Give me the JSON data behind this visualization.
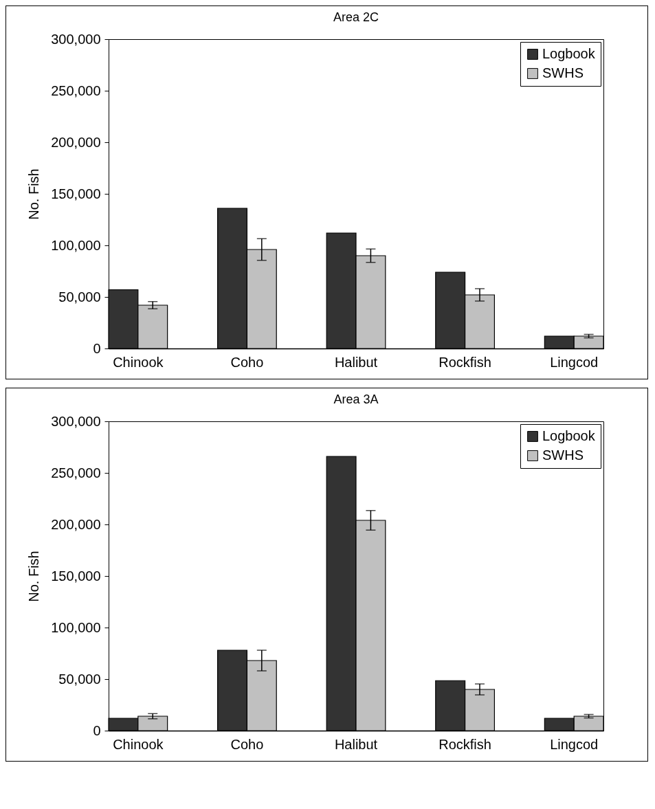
{
  "chart_data": [
    {
      "type": "bar",
      "title": "Area 2C",
      "ylabel": "No. Fish",
      "categories": [
        "Chinook",
        "Coho",
        "Halibut",
        "Rockfish",
        "Lingcod"
      ],
      "series": [
        {
          "name": "Logbook",
          "color": "#333333",
          "values": [
            57000,
            136000,
            112000,
            74000,
            12000
          ]
        },
        {
          "name": "SWHS",
          "color": "#c0c0c0",
          "values": [
            42000,
            96000,
            90000,
            52000,
            12000
          ],
          "errors": [
            3500,
            10500,
            6500,
            6000,
            1700
          ]
        }
      ],
      "ylim": [
        0,
        300000
      ],
      "yticks": [
        0,
        {
          "value": 50000,
          "label": "50,000"
        },
        {
          "value": 100000,
          "label": "100,000"
        },
        {
          "value": 150000,
          "label": "150,000"
        },
        {
          "value": 200000,
          "label": "200,000"
        },
        {
          "value": 250000,
          "label": "250,000"
        },
        {
          "value": 300000,
          "label": "300,000"
        }
      ],
      "legend": "top right",
      "grid": false
    },
    {
      "type": "bar",
      "title": "Area 3A",
      "ylabel": "No. Fish",
      "categories": [
        "Chinook",
        "Coho",
        "Halibut",
        "Rockfish",
        "Lingcod"
      ],
      "series": [
        {
          "name": "Logbook",
          "color": "#333333",
          "values": [
            12000,
            78000,
            266000,
            48500,
            12000
          ]
        },
        {
          "name": "SWHS",
          "color": "#c0c0c0",
          "values": [
            14000,
            68000,
            204000,
            40000,
            14000
          ],
          "errors": [
            2500,
            10000,
            9500,
            5300,
            1700
          ]
        }
      ],
      "ylim": [
        0,
        300000
      ],
      "yticks": [
        0,
        {
          "value": 50000,
          "label": "50,000"
        },
        {
          "value": 100000,
          "label": "100,000"
        },
        {
          "value": 150000,
          "label": "150,000"
        },
        {
          "value": 200000,
          "label": "200,000"
        },
        {
          "value": 250000,
          "label": "250,000"
        },
        {
          "value": 300000,
          "label": "300,000"
        }
      ],
      "legend": "top right",
      "grid": false
    }
  ]
}
